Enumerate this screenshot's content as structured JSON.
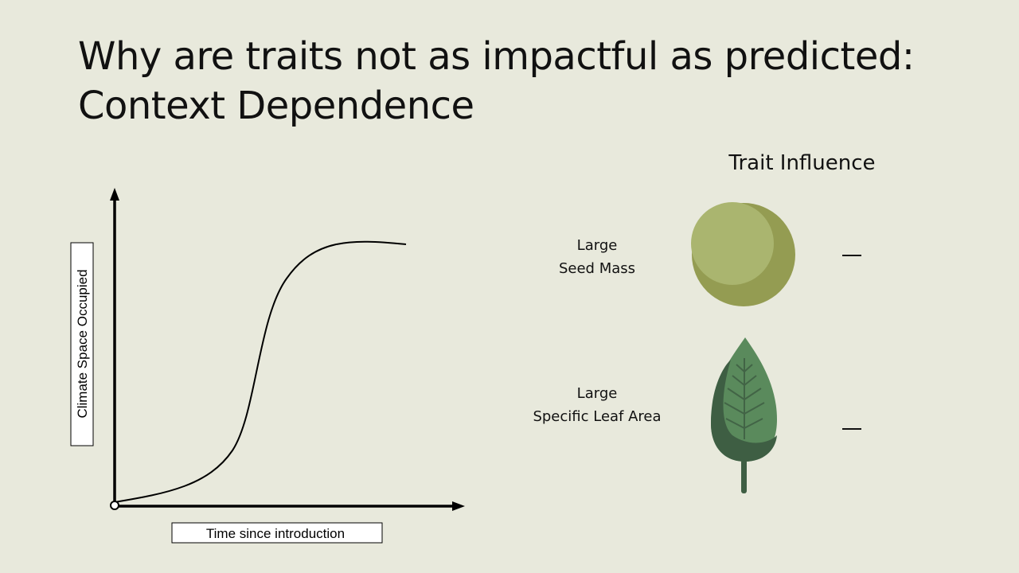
{
  "slide": {
    "title_line1": "Why are traits not as impactful as predicted:",
    "title_line2": "Context Dependence"
  },
  "graph": {
    "y_axis_label": "Climate Space Occupied",
    "x_axis_label": "Time since introduction",
    "curve_shape": "sigmoid"
  },
  "traits": {
    "heading": "Trait Influence",
    "items": [
      {
        "label_line1": "Large",
        "label_line2": "Seed Mass",
        "icon": "seed-icon",
        "influence": "—"
      },
      {
        "label_line1": "Large",
        "label_line2": "Specific Leaf Area",
        "icon": "leaf-icon",
        "influence": "—"
      }
    ]
  },
  "colors": {
    "background": "#e8e9dc",
    "seed_light": "#aab56f",
    "seed_dark": "#949c52",
    "leaf_light": "#5a8a5c",
    "leaf_dark": "#3e5e43"
  }
}
